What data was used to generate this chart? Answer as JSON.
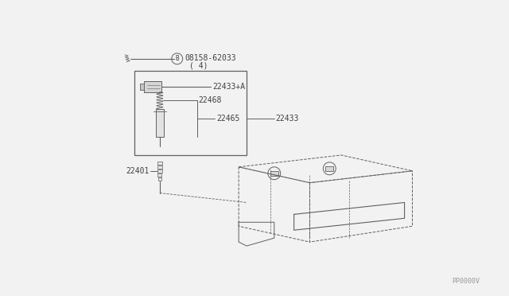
{
  "bg_color": "#f2f2f2",
  "line_color": "#606060",
  "text_color": "#404040",
  "watermark": "PP0000V",
  "labels": {
    "bolt": "08158-62033",
    "bolt_qty": "( 4)",
    "coil_top": "22433+A",
    "part_22468": "22468",
    "part_22465": "22465",
    "part_22433": "22433",
    "part_22401": "22401"
  },
  "figsize": [
    6.4,
    3.72
  ],
  "dpi": 100
}
